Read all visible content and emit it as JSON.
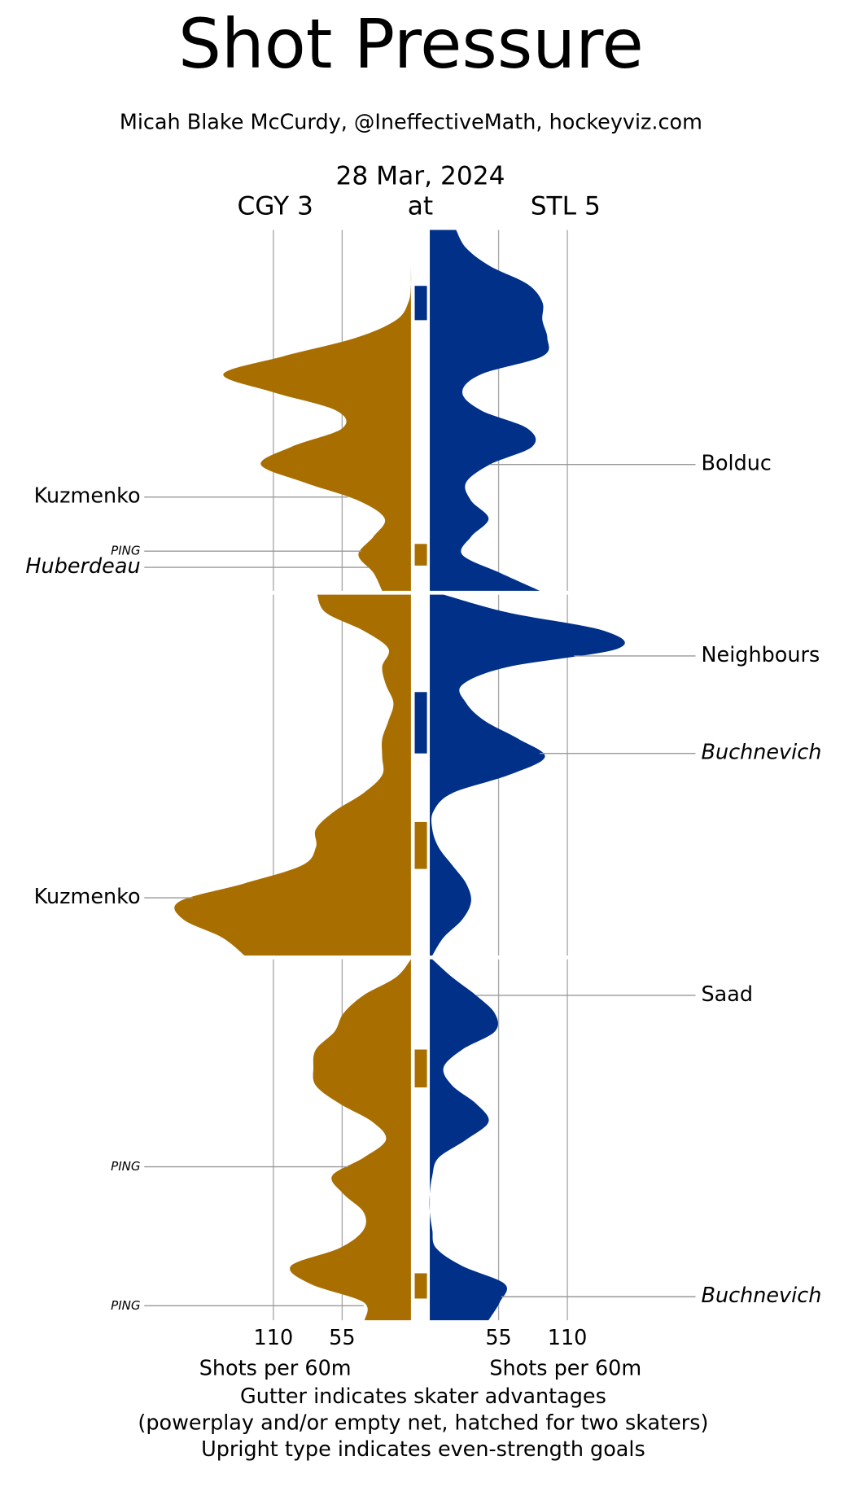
{
  "chart_data": {
    "type": "shot_pressure",
    "title": "Shot Pressure",
    "subtitle": "Micah Blake McCurdy, @IneffectiveMath, hockeyviz.com",
    "date": "28 Mar, 2024",
    "at": "at",
    "x": [
      0,
      1,
      2,
      3,
      4,
      5,
      6,
      7,
      8,
      9,
      10,
      11,
      12,
      13,
      14,
      15,
      16,
      17,
      18,
      19,
      20
    ],
    "xlim": [
      0,
      20
    ],
    "ylim": [
      0,
      220
    ],
    "yticks": [
      55,
      110
    ],
    "ylabel": "Shots per 60m",
    "notes": [
      "Gutter indicates skater advantages",
      "(powerplay and/or empty net, hatched for two skaters)",
      "Upright type indicates even-strength goals"
    ],
    "teams": [
      {
        "name": "CGY 3",
        "color": "#a96e00",
        "values": [
          [
            0,
            0,
            0,
            0,
            2,
            12,
            45,
            102,
            150,
            110,
            60,
            55,
            95,
            120,
            85,
            42,
            21,
            30,
            42,
            30,
            23
          ],
          [
            75,
            68,
            38,
            18,
            23,
            20,
            14,
            18,
            23,
            23,
            23,
            38,
            61,
            76,
            76,
            87,
            133,
            185,
            182,
            151,
            133
          ],
          [
            0,
            12,
            38,
            54,
            61,
            76,
            78,
            76,
            57,
            31,
            20,
            38,
            63,
            54,
            38,
            38,
            57,
            96,
            80,
            38,
            37
          ]
        ],
        "advantages": [
          {
            "period": 1,
            "start": 17.4,
            "end": 18.6
          },
          {
            "period": 2,
            "start": 12.6,
            "end": 15.2
          },
          {
            "period": 3,
            "start": 5.0,
            "end": 7.1
          },
          {
            "period": 3,
            "start": 17.4,
            "end": 18.8
          }
        ],
        "events": [
          {
            "label": "Kuzmenko",
            "period": 1,
            "minute": 14.8,
            "even_strength": true
          },
          {
            "label": "PING",
            "period": 1,
            "minute": 17.8
          },
          {
            "label": "Huberdeau",
            "period": 1,
            "minute": 18.7,
            "even_strength": false
          },
          {
            "label": "Kuzmenko",
            "period": 2,
            "minute": 16.8,
            "even_strength": true
          },
          {
            "label": "PING",
            "period": 3,
            "minute": 11.5
          },
          {
            "label": "PING",
            "period": 3,
            "minute": 19.2
          }
        ]
      },
      {
        "name": "STL 5",
        "color": "#003087",
        "values": [
          [
            21,
            29,
            48,
            78,
            90,
            90,
            94,
            90,
            41,
            26,
            41,
            78,
            82,
            48,
            29,
            33,
            47,
            33,
            26,
            56,
            88
          ],
          [
            11,
            63,
            139,
            150,
            63,
            26,
            29,
            44,
            71,
            92,
            63,
            18,
            3,
            2,
            7,
            18,
            29,
            33,
            26,
            11,
            2
          ],
          [
            2,
            18,
            37,
            52,
            52,
            26,
            11,
            18,
            37,
            47,
            29,
            7,
            2,
            0,
            0,
            2,
            5,
            26,
            60,
            56,
            47
          ]
        ],
        "advantages": [
          {
            "period": 1,
            "start": 3.1,
            "end": 5.0
          },
          {
            "period": 2,
            "start": 5.4,
            "end": 8.8
          }
        ],
        "events": [
          {
            "label": "Bolduc",
            "period": 1,
            "minute": 13.0,
            "even_strength": true
          },
          {
            "label": "Neighbours",
            "period": 2,
            "minute": 3.4,
            "even_strength": true
          },
          {
            "label": "Buchnevich",
            "period": 2,
            "minute": 8.8,
            "even_strength": false
          },
          {
            "label": "Saad",
            "period": 3,
            "minute": 2.0,
            "even_strength": true
          },
          {
            "label": "Buchnevich",
            "period": 3,
            "minute": 18.7,
            "even_strength": false
          }
        ]
      }
    ]
  }
}
